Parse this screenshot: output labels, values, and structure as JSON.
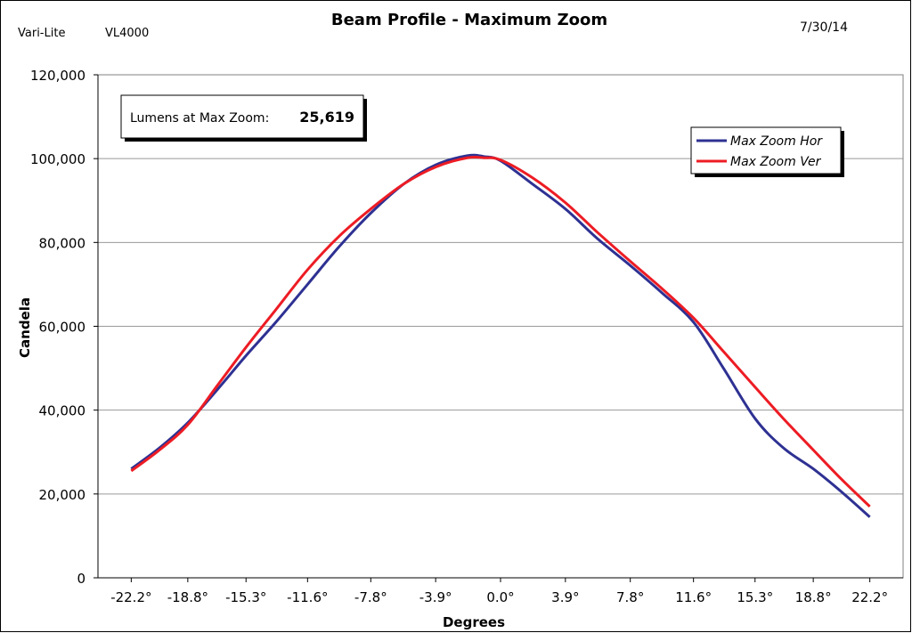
{
  "header": {
    "brand": "Vari-Lite",
    "model": "VL4000",
    "date": "7/30/14"
  },
  "info_box": {
    "label": "Lumens at Max Zoom:",
    "value": "25,619"
  },
  "colors": {
    "hor": "#2e3192",
    "ver": "#ed1c24",
    "grid": "#999999",
    "axis": "#000000"
  },
  "chart_data": {
    "type": "line",
    "title": "Beam Profile - Maximum Zoom",
    "xlabel": "Degrees",
    "ylabel": "Candela",
    "xlim": [
      -24.2,
      24.2
    ],
    "ylim": [
      0,
      120000
    ],
    "x_ticks": [
      -22.2,
      -18.8,
      -15.3,
      -11.6,
      -7.8,
      -3.9,
      0.0,
      3.9,
      7.8,
      11.6,
      15.3,
      18.8,
      22.2
    ],
    "x_tick_labels": [
      "-22.2°",
      "-18.8°",
      "-15.3°",
      "-11.6°",
      "-7.8°",
      "-3.9°",
      "0.0°",
      "3.9°",
      "7.8°",
      "11.6°",
      "15.3°",
      "18.8°",
      "22.2°"
    ],
    "y_ticks": [
      0,
      20000,
      40000,
      60000,
      80000,
      100000,
      120000
    ],
    "y_tick_labels": [
      "0",
      "20,000",
      "40,000",
      "60,000",
      "80,000",
      "100,000",
      "120,000"
    ],
    "grid": true,
    "legend": "top-right",
    "series": [
      {
        "name": "Max Zoom Hor",
        "x": [
          -22.2,
          -20.5,
          -18.8,
          -17.0,
          -15.3,
          -13.5,
          -11.6,
          -9.7,
          -7.8,
          -5.8,
          -3.9,
          -2.0,
          -1.0,
          0.0,
          1.9,
          3.9,
          5.8,
          7.8,
          9.7,
          11.6,
          13.4,
          15.3,
          17.0,
          18.8,
          20.5,
          22.2
        ],
        "y": [
          26000,
          31000,
          37000,
          45000,
          53000,
          61000,
          70000,
          79000,
          87000,
          94000,
          98500,
          100700,
          100500,
          99500,
          94000,
          88000,
          81000,
          74500,
          68000,
          61000,
          50000,
          38000,
          31000,
          26000,
          20500,
          14500
        ]
      },
      {
        "name": "Max Zoom Ver",
        "x": [
          -22.2,
          -20.5,
          -18.8,
          -17.0,
          -15.3,
          -13.5,
          -11.6,
          -9.7,
          -7.8,
          -5.8,
          -3.9,
          -2.0,
          -1.0,
          0.0,
          1.9,
          3.9,
          5.8,
          7.8,
          9.7,
          11.6,
          13.4,
          15.3,
          17.0,
          18.8,
          20.5,
          22.2
        ],
        "y": [
          25500,
          30500,
          36500,
          46000,
          55000,
          64000,
          73500,
          81500,
          88000,
          94000,
          98000,
          100200,
          100200,
          99700,
          95500,
          89500,
          82500,
          75500,
          69000,
          62000,
          54000,
          45500,
          38000,
          30500,
          23500,
          17000
        ]
      }
    ]
  }
}
